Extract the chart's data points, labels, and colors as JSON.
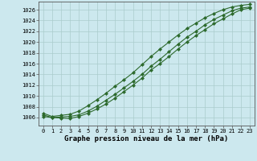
{
  "xlabel": "Graphe pression niveau de la mer (hPa)",
  "x": [
    0,
    1,
    2,
    3,
    4,
    5,
    6,
    7,
    8,
    9,
    10,
    11,
    12,
    13,
    14,
    15,
    16,
    17,
    18,
    19,
    20,
    21,
    22,
    23
  ],
  "line1": [
    1006.2,
    1006.0,
    1005.9,
    1005.8,
    1006.2,
    1006.8,
    1007.6,
    1008.5,
    1009.6,
    1010.8,
    1012.0,
    1013.3,
    1014.8,
    1016.0,
    1017.3,
    1018.7,
    1020.0,
    1021.2,
    1022.3,
    1023.4,
    1024.3,
    1025.2,
    1026.0,
    1026.3
  ],
  "line2": [
    1006.5,
    1006.0,
    1006.1,
    1006.2,
    1006.5,
    1007.2,
    1008.1,
    1009.2,
    1010.3,
    1011.5,
    1012.7,
    1014.0,
    1015.5,
    1016.8,
    1018.2,
    1019.6,
    1020.9,
    1022.0,
    1023.2,
    1024.2,
    1025.0,
    1025.8,
    1026.3,
    1026.5
  ],
  "line3": [
    1006.8,
    1006.2,
    1006.4,
    1006.6,
    1007.2,
    1008.2,
    1009.3,
    1010.5,
    1011.8,
    1013.0,
    1014.3,
    1015.8,
    1017.3,
    1018.7,
    1020.0,
    1021.3,
    1022.5,
    1023.5,
    1024.5,
    1025.3,
    1026.0,
    1026.5,
    1026.8,
    1027.0
  ],
  "line_color": "#2d6a2d",
  "bg_color": "#cce8ee",
  "grid_color": "#aacccc",
  "ylim": [
    1004.5,
    1027.5
  ],
  "yticks": [
    1006,
    1008,
    1010,
    1012,
    1014,
    1016,
    1018,
    1020,
    1022,
    1024,
    1026
  ],
  "xticks": [
    0,
    1,
    2,
    3,
    4,
    5,
    6,
    7,
    8,
    9,
    10,
    11,
    12,
    13,
    14,
    15,
    16,
    17,
    18,
    19,
    20,
    21,
    22,
    23
  ],
  "marker": "D",
  "markersize": 2.0,
  "linewidth": 0.8,
  "xlabel_fontsize": 6.5,
  "tick_fontsize": 5.0
}
